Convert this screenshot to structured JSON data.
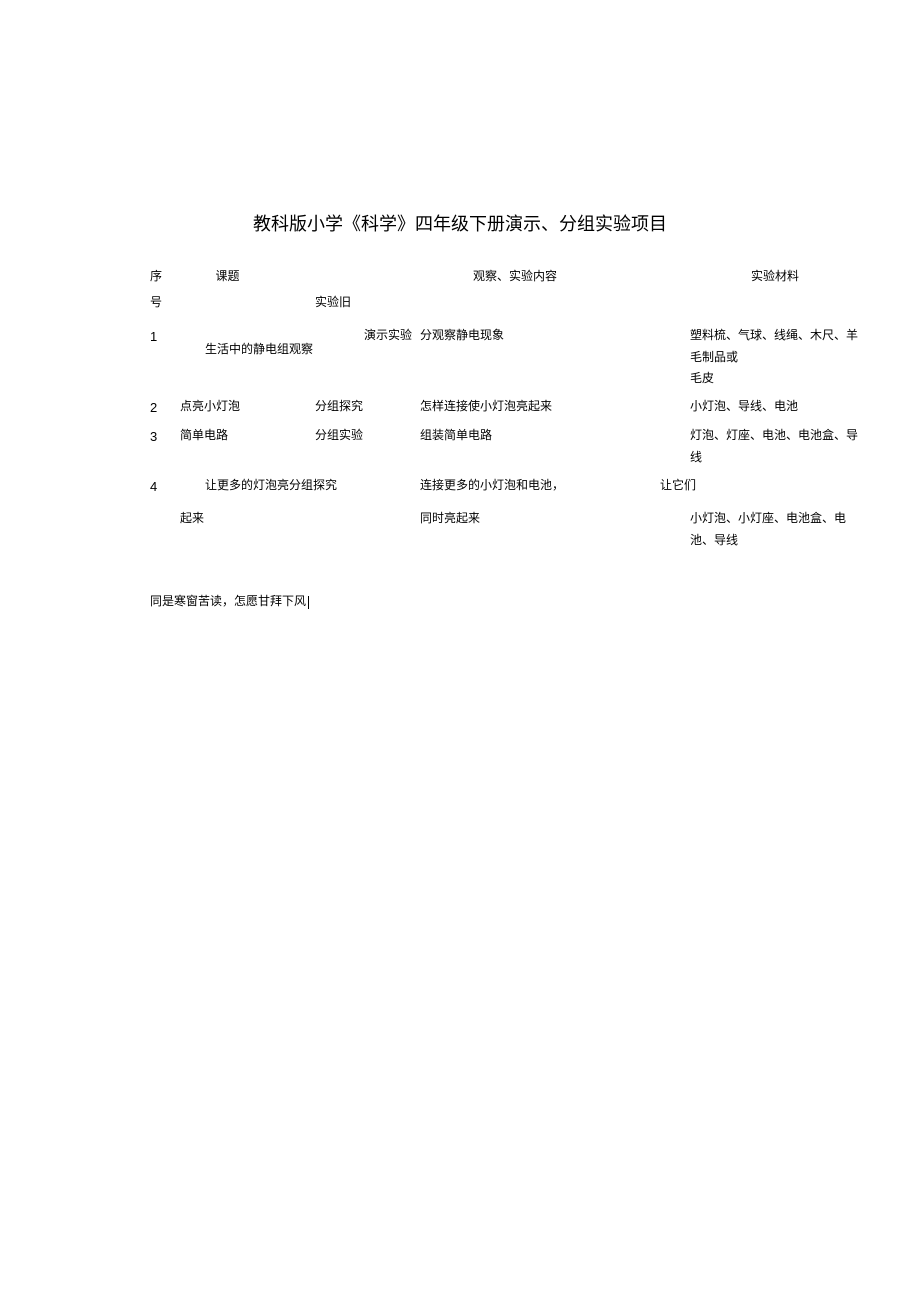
{
  "title": "教科版小学《科学》四年级下册演示、分组实验项目",
  "headers": {
    "seq1": "序",
    "seq2": "号",
    "topic": "课题",
    "type_label": "实验旧",
    "content": "观察、实验内容",
    "material": "实验材料"
  },
  "rows": [
    {
      "seq": "1",
      "topic": "生活中的静电组观察",
      "type": "演示实验",
      "content": "分观察静电现象",
      "material_line1": "塑料梳、气球、线绳、木尺、羊毛制品或",
      "material_line2": "毛皮"
    },
    {
      "seq": "2",
      "topic": "点亮小灯泡",
      "type": "分组探究",
      "content": "怎样连接使小灯泡亮起来",
      "material": "小灯泡、导线、电池"
    },
    {
      "seq": "3",
      "topic": "简单电路",
      "type": "分组实验",
      "content": "组装简单电路",
      "material": "灯泡、灯座、电池、电池盒、导线"
    },
    {
      "seq": "4",
      "topic_merged": "让更多的灯泡亮分组探究",
      "content1": "连接更多的小灯泡和电池，",
      "extra": "让它们",
      "topic_cont": "起来",
      "content_cont": "同时亮起来",
      "material": "小灯泡、小灯座、电池盒、电池、导线"
    }
  ],
  "footer": "同是寒窗苦读，怎愿甘拜下风",
  "colors": {
    "text": "#000000",
    "background": "#ffffff"
  },
  "fonts": {
    "body_size": 12,
    "title_size": 18,
    "seq_size": 13
  }
}
